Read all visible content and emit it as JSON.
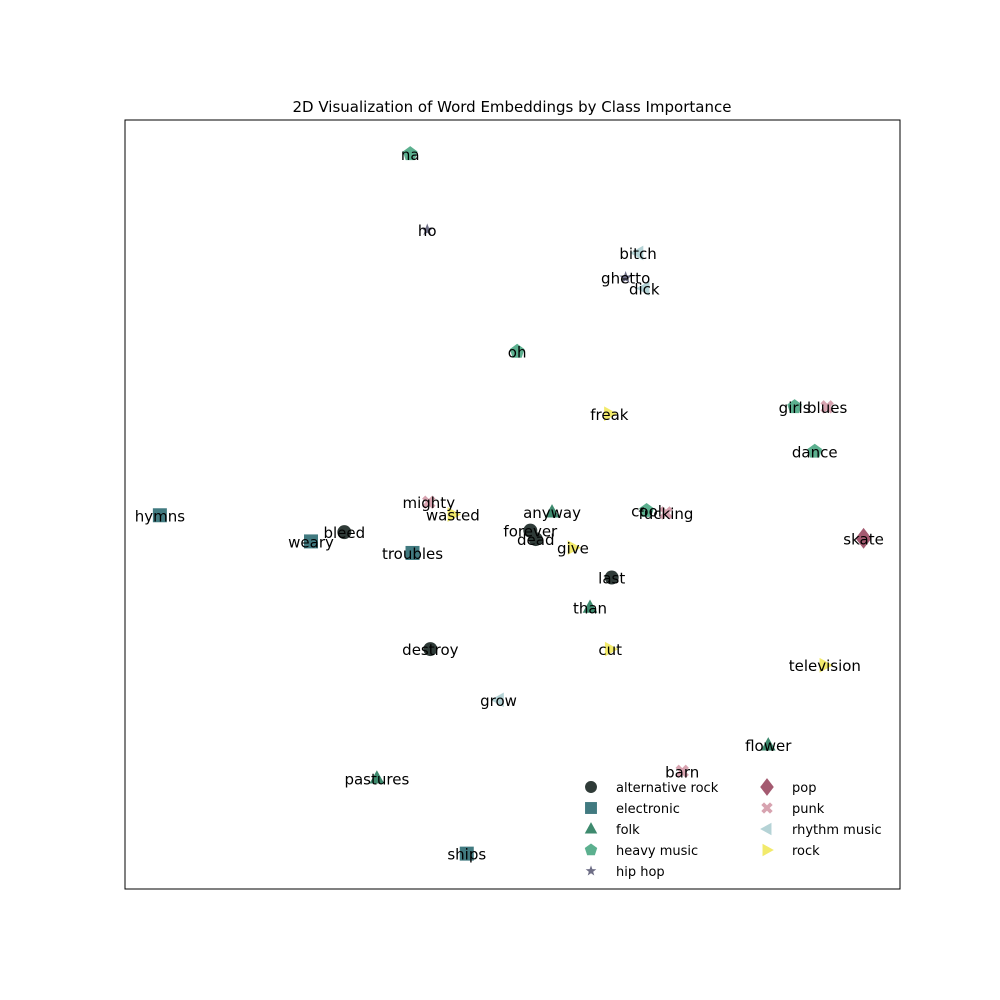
{
  "chart_data": {
    "type": "scatter",
    "title": "2D Visualization of Word Embeddings by Class Importance",
    "xlabel": "",
    "ylabel": "",
    "xlim": [
      0,
      100
    ],
    "ylim": [
      0,
      100
    ],
    "grid": false,
    "axis_ticks": false,
    "legend_position": "lower-right",
    "classes": [
      {
        "name": "alternative rock",
        "marker": "circle",
        "color": "#2f3b38"
      },
      {
        "name": "electronic",
        "marker": "square",
        "color": "#417a80"
      },
      {
        "name": "folk",
        "marker": "triangle-up",
        "color": "#3e8a6e"
      },
      {
        "name": "heavy music",
        "marker": "pentagon",
        "color": "#5cb08f"
      },
      {
        "name": "hip hop",
        "marker": "star",
        "color": "#6e6e86"
      },
      {
        "name": "pop",
        "marker": "diamond",
        "color": "#a45a70"
      },
      {
        "name": "punk",
        "marker": "x",
        "color": "#d7a3b0"
      },
      {
        "name": "rhythm music",
        "marker": "triangle-left",
        "color": "#b5d3d6"
      },
      {
        "name": "rock",
        "marker": "triangle-right",
        "color": "#f2ea6b"
      }
    ],
    "points": [
      {
        "word": "na",
        "class": "heavy music",
        "x": 36.8,
        "y": 95.6
      },
      {
        "word": "ho",
        "class": "hip hop",
        "x": 39.0,
        "y": 85.7
      },
      {
        "word": "bitch",
        "class": "rhythm music",
        "x": 66.2,
        "y": 82.7
      },
      {
        "word": "ghetto",
        "class": "hip hop",
        "x": 64.6,
        "y": 79.5
      },
      {
        "word": "dick",
        "class": "rhythm music",
        "x": 67.0,
        "y": 78.1
      },
      {
        "word": "oh",
        "class": "heavy music",
        "x": 50.6,
        "y": 69.9
      },
      {
        "word": "girls",
        "class": "heavy music",
        "x": 86.4,
        "y": 62.7
      },
      {
        "word": "blues",
        "class": "punk",
        "x": 90.6,
        "y": 62.7
      },
      {
        "word": "freak",
        "class": "rock",
        "x": 62.5,
        "y": 61.8
      },
      {
        "word": "dance",
        "class": "heavy music",
        "x": 89.0,
        "y": 56.9
      },
      {
        "word": "hymns",
        "class": "electronic",
        "x": 4.5,
        "y": 48.6
      },
      {
        "word": "mighty",
        "class": "punk",
        "x": 39.2,
        "y": 50.3
      },
      {
        "word": "wasted",
        "class": "rock",
        "x": 42.3,
        "y": 48.7
      },
      {
        "word": "anyway",
        "class": "folk",
        "x": 55.1,
        "y": 49.0
      },
      {
        "word": "cool",
        "class": "heavy music",
        "x": 67.3,
        "y": 49.2
      },
      {
        "word": "fucking",
        "class": "punk",
        "x": 69.8,
        "y": 48.9
      },
      {
        "word": "bleed",
        "class": "alternative rock",
        "x": 28.3,
        "y": 46.4
      },
      {
        "word": "forever",
        "class": "alternative rock",
        "x": 52.3,
        "y": 46.6
      },
      {
        "word": "dead",
        "class": "alternative rock",
        "x": 53.0,
        "y": 45.5
      },
      {
        "word": "skate",
        "class": "pop",
        "x": 95.3,
        "y": 45.6
      },
      {
        "word": "weary",
        "class": "electronic",
        "x": 24.0,
        "y": 45.2
      },
      {
        "word": "give",
        "class": "rock",
        "x": 57.8,
        "y": 44.4
      },
      {
        "word": "troubles",
        "class": "electronic",
        "x": 37.1,
        "y": 43.7
      },
      {
        "word": "last",
        "class": "alternative rock",
        "x": 62.8,
        "y": 40.5
      },
      {
        "word": "than",
        "class": "folk",
        "x": 60.0,
        "y": 36.6
      },
      {
        "word": "destroy",
        "class": "alternative rock",
        "x": 39.4,
        "y": 31.2
      },
      {
        "word": "cut",
        "class": "rock",
        "x": 62.6,
        "y": 31.2
      },
      {
        "word": "television",
        "class": "rock",
        "x": 90.3,
        "y": 29.1
      },
      {
        "word": "grow",
        "class": "rhythm music",
        "x": 48.2,
        "y": 24.6
      },
      {
        "word": "flower",
        "class": "folk",
        "x": 83.0,
        "y": 18.7
      },
      {
        "word": "barn",
        "class": "punk",
        "x": 71.9,
        "y": 15.3
      },
      {
        "word": "pastures",
        "class": "folk",
        "x": 32.5,
        "y": 14.4
      },
      {
        "word": "ships",
        "class": "electronic",
        "x": 44.1,
        "y": 4.6
      }
    ]
  }
}
